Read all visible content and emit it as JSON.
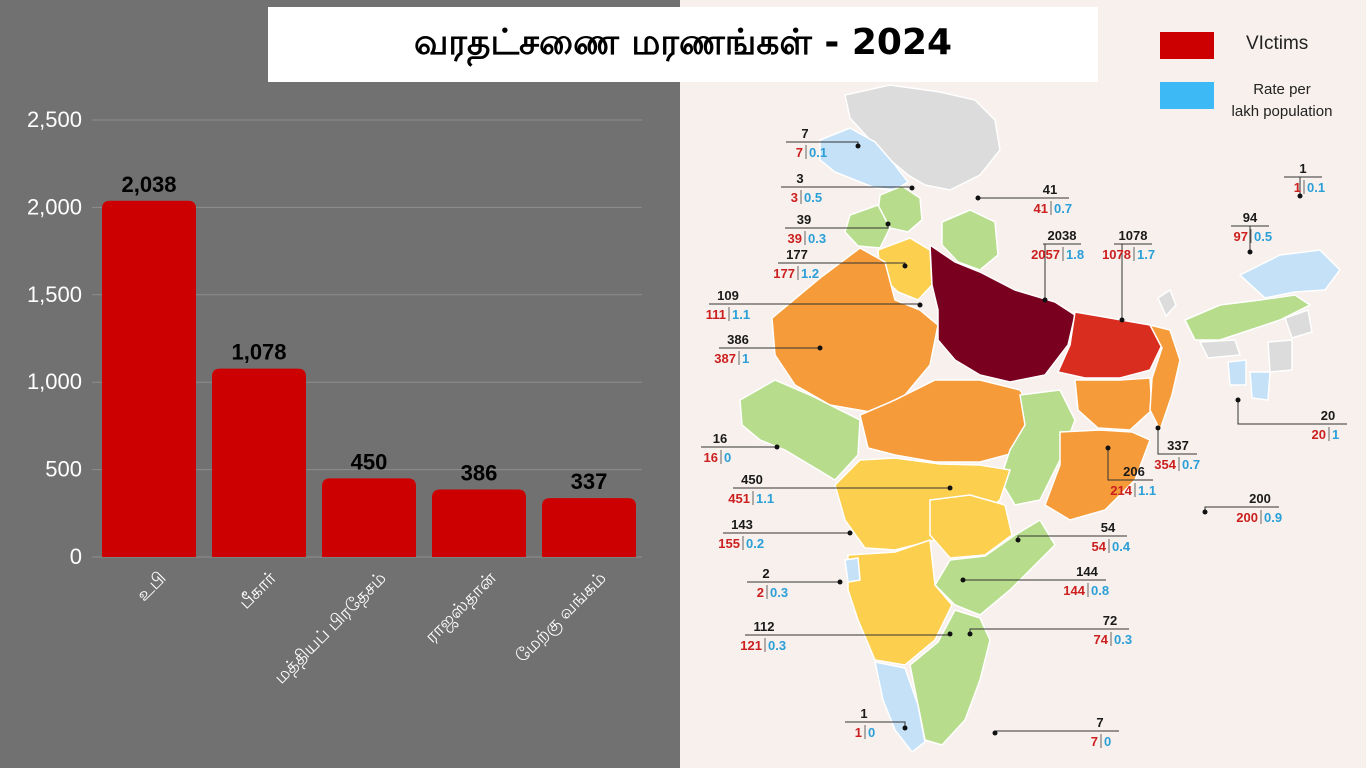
{
  "title": "வரதட்சணை மரணங்கள் - 2024",
  "legend": [
    {
      "label": "VIctims",
      "color": "#cc0000"
    },
    {
      "label": "Rate per",
      "label2": "lakh population",
      "color": "#3db9f5"
    }
  ],
  "chart_data": {
    "type": "bar",
    "title": "வரதட்சணை மரணங்கள் - 2024",
    "categories": [
      "உபி",
      "பீகார்",
      "மத்தியப் பிரதேசம்",
      "ராஜஸ்தான்",
      "மேற்கு வங்கம்"
    ],
    "values": [
      2038,
      1078,
      450,
      386,
      337
    ],
    "data_labels": [
      "2,038",
      "1,078",
      "450",
      "386",
      "337"
    ],
    "y_ticks": [
      0,
      500,
      1000,
      1500,
      2000,
      2500
    ],
    "y_tick_labels": [
      "0",
      "500",
      "1,000",
      "1,500",
      "2,000",
      "2,500"
    ],
    "ylim": [
      0,
      2500
    ],
    "xlabel": "",
    "ylabel": "",
    "grid": true,
    "bar_color": "#cc0000"
  },
  "map_labels": [
    {
      "top": "7",
      "victims": "7",
      "rate": "0.1"
    },
    {
      "top": "3",
      "victims": "3",
      "rate": "0.5"
    },
    {
      "top": "39",
      "victims": "39",
      "rate": "0.3"
    },
    {
      "top": "177",
      "victims": "177",
      "rate": "1.2"
    },
    {
      "top": "109",
      "victims": "111",
      "rate": "1.1"
    },
    {
      "top": "386",
      "victims": "387",
      "rate": "1"
    },
    {
      "top": "16",
      "victims": "16",
      "rate": "0"
    },
    {
      "top": "450",
      "victims": "451",
      "rate": "1.1"
    },
    {
      "top": "143",
      "victims": "155",
      "rate": "0.2"
    },
    {
      "top": "2",
      "victims": "2",
      "rate": "0.3"
    },
    {
      "top": "112",
      "victims": "121",
      "rate": "0.3"
    },
    {
      "top": "1",
      "victims": "1",
      "rate": "0"
    },
    {
      "top": "41",
      "victims": "41",
      "rate": "0.7"
    },
    {
      "top": "2038",
      "victims": "2057",
      "rate": "1.8"
    },
    {
      "top": "1078",
      "victims": "1078",
      "rate": "1.7"
    },
    {
      "top": "1",
      "victims": "1",
      "rate": "0.1"
    },
    {
      "top": "94",
      "victims": "97",
      "rate": "0.5"
    },
    {
      "top": "20",
      "victims": "20",
      "rate": "1"
    },
    {
      "top": "337",
      "victims": "354",
      "rate": "0.7"
    },
    {
      "top": "206",
      "victims": "214",
      "rate": "1.1"
    },
    {
      "top": "200",
      "victims": "200",
      "rate": "0.9"
    },
    {
      "top": "54",
      "victims": "54",
      "rate": "0.4"
    },
    {
      "top": "144",
      "victims": "144",
      "rate": "0.8"
    },
    {
      "top": "72",
      "victims": "74",
      "rate": "0.3"
    },
    {
      "top": "7",
      "victims": "7",
      "rate": "0"
    }
  ]
}
